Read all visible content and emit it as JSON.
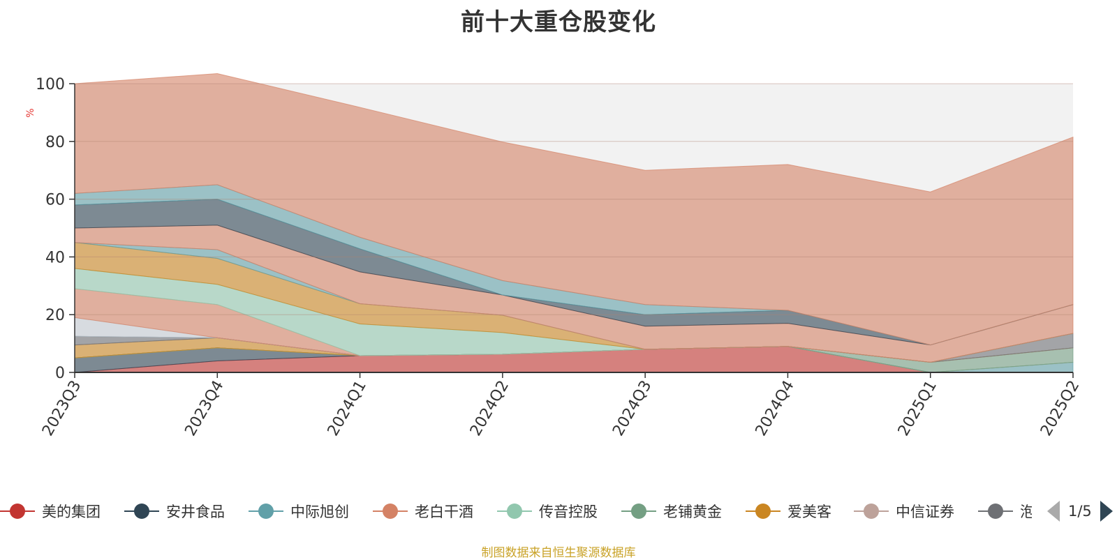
{
  "chart_data": {
    "type": "area",
    "title": "前十大重仓股变化",
    "ylabel": "%",
    "ylim": [
      0,
      100
    ],
    "yticks": [
      0,
      20,
      40,
      60,
      80,
      100
    ],
    "categories": [
      "2023Q3",
      "2023Q4",
      "2024Q1",
      "2024Q2",
      "2024Q3",
      "2024Q4",
      "2025Q1",
      "2025Q2"
    ],
    "grid": true,
    "legend_position": "bottom",
    "series": [
      {
        "name": "美的集团",
        "color": "#c23531",
        "values": [
          0,
          4,
          5.8,
          6.3,
          8,
          9,
          0,
          0
        ]
      },
      {
        "name": "安井食品",
        "color": "#2f4554",
        "values": [
          5,
          4.5,
          0,
          0,
          0,
          0,
          0,
          0
        ]
      },
      {
        "name": "中际旭创",
        "color": "#61a0a8",
        "values": [
          0,
          0,
          0,
          0,
          0,
          0,
          0,
          3.5
        ]
      },
      {
        "name": "老白干酒",
        "color": "#d48265",
        "values": [
          0,
          0,
          0,
          0,
          0,
          0,
          0,
          0
        ]
      },
      {
        "name": "传音控股",
        "color": "#91c7ae",
        "values": [
          0,
          0,
          0,
          0,
          0,
          0,
          0,
          0
        ]
      },
      {
        "name": "老铺黄金",
        "color": "#749f83",
        "values": [
          0,
          0,
          0,
          0,
          0,
          0,
          3.5,
          5
        ]
      },
      {
        "name": "爱美客",
        "color": "#ca8622",
        "values": [
          4.5,
          3.5,
          0,
          0,
          0,
          0,
          0,
          0
        ]
      },
      {
        "name": "中信证券",
        "color": "#bda29a",
        "values": [
          0,
          0,
          0,
          0,
          0,
          0,
          0,
          0
        ]
      },
      {
        "name": "泡泡玛特",
        "color": "#6e7074",
        "values": [
          3,
          0,
          0,
          0,
          0,
          0,
          0,
          5
        ]
      },
      {
        "name": "stack-10",
        "color": "#546570",
        "values": [
          0,
          0,
          0,
          0,
          0,
          0,
          0,
          0
        ]
      },
      {
        "name": "stack-11",
        "color": "#c4ccd3",
        "values": [
          6.5,
          0,
          0,
          0,
          0,
          0,
          0,
          0
        ]
      },
      {
        "name": "stack-12",
        "color": "#d48265",
        "values": [
          10,
          11.5,
          0,
          0,
          0,
          0,
          0,
          0
        ]
      },
      {
        "name": "stack-13",
        "color": "#91c7ae",
        "values": [
          7,
          7,
          11,
          7.5,
          0,
          0,
          0,
          0
        ]
      },
      {
        "name": "stack-14",
        "color": "#ca8622",
        "values": [
          9,
          9,
          7,
          6,
          0,
          0,
          0,
          0
        ]
      },
      {
        "name": "stack-15",
        "color": "#61a0a8",
        "values": [
          0,
          3,
          0,
          0,
          0,
          0,
          0,
          0
        ]
      },
      {
        "name": "stack-16",
        "color": "#d48265",
        "values": [
          5,
          8.5,
          11,
          7,
          8,
          8,
          6,
          10
        ]
      },
      {
        "name": "stack-17",
        "color": "#2f4554",
        "values": [
          8,
          9,
          8,
          0,
          4,
          4.5,
          0,
          0
        ]
      },
      {
        "name": "stack-18",
        "color": "#61a0a8",
        "values": [
          4,
          5,
          4,
          5,
          3.5,
          0,
          0,
          0
        ]
      },
      {
        "name": "stack-19",
        "color": "#d48265",
        "values": [
          38,
          38.5,
          45,
          48,
          46.5,
          50.5,
          53,
          58
        ]
      }
    ]
  },
  "legend": {
    "items": [
      {
        "name": "美的集团",
        "color": "#c23531"
      },
      {
        "name": "安井食品",
        "color": "#2f4554"
      },
      {
        "name": "中际旭创",
        "color": "#61a0a8"
      },
      {
        "name": "老白干酒",
        "color": "#d48265"
      },
      {
        "name": "传音控股",
        "color": "#91c7ae"
      },
      {
        "name": "老铺黄金",
        "color": "#749f83"
      },
      {
        "name": "爱美客",
        "color": "#ca8622"
      },
      {
        "name": "中信证券",
        "color": "#bda29a"
      },
      {
        "name": "泡泡玛特",
        "color": "#6e7074"
      }
    ],
    "page_text": "1/5"
  },
  "footer": "制图数据来自恒生聚源数据库"
}
